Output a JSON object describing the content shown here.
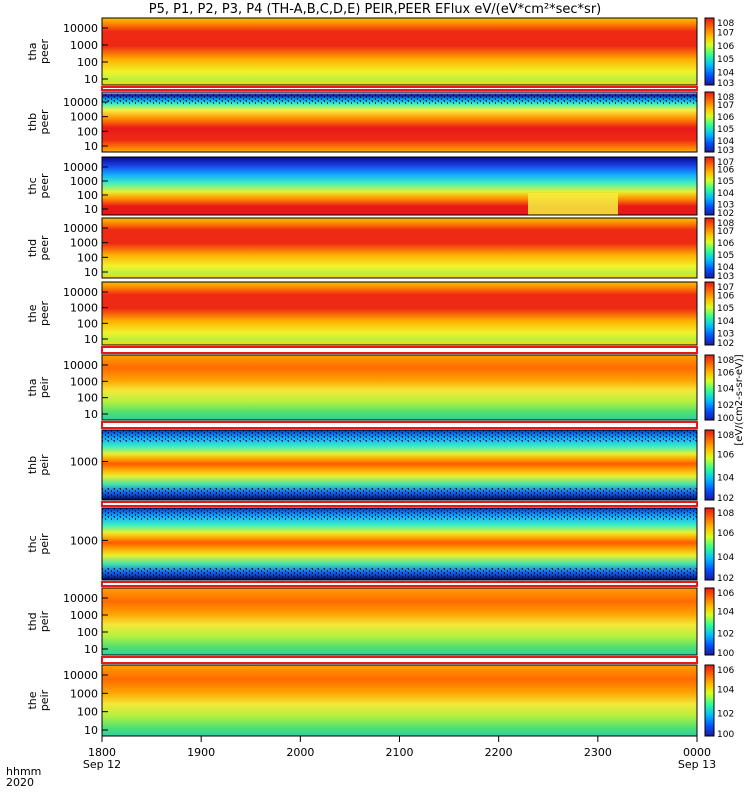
{
  "header": {
    "title": "P5, P1, P2, P3, P4 (TH-A,B,C,D,E) PEIR,PEER EFlux eV/(eV*cm²*sec*sr)"
  },
  "footer": {
    "unit_line1": "hhmm",
    "unit_line2": "2020",
    "colorbar_units": "[eV/(cm2-s-sr-eV)]"
  },
  "chart_data": {
    "type": "heatmap",
    "title": "P5, P1, P2, P3, P4 (TH-A,B,C,D,E) PEIR,PEER EFlux eV/(eV*cm²*sec*sr)",
    "x_axis": {
      "ticks": [
        "1800",
        "1900",
        "2000",
        "2100",
        "2200",
        "2300",
        "0000"
      ],
      "date_labels": {
        "1800": "Sep 12",
        "0000": "Sep 13"
      },
      "range": [
        "2020-09-12 18:00",
        "2020-09-13 00:00"
      ]
    },
    "colorbar": {
      "colors": [
        "#1a1aa0",
        "#0050ff",
        "#00c0ff",
        "#30ff90",
        "#d8ff20",
        "#ffc000",
        "#ff6a00",
        "#e81818"
      ]
    },
    "panels": [
      {
        "probe": "tha",
        "species": "peer",
        "ylabels": [
          "10000",
          "1000",
          "100",
          "10"
        ],
        "cbar_ticks": [
          "10^8",
          "10^7",
          "10^6",
          "10^5",
          "10^4",
          "10^3"
        ],
        "cbar_max": 8,
        "cbar_min": 3
      },
      {
        "probe": "thb",
        "species": "peer",
        "ylabels": [
          "10000",
          "1000",
          "100",
          "10"
        ],
        "cbar_ticks": [
          "10^8",
          "10^7",
          "10^6",
          "10^5",
          "10^4",
          "10^3"
        ],
        "cbar_max": 8,
        "cbar_min": 3
      },
      {
        "probe": "thc",
        "species": "peer",
        "ylabels": [
          "10000",
          "1000",
          "100",
          "10"
        ],
        "cbar_ticks": [
          "10^7",
          "10^6",
          "10^5",
          "10^4",
          "10^3",
          "10^2"
        ],
        "cbar_max": 7,
        "cbar_min": 2
      },
      {
        "probe": "thd",
        "species": "peer",
        "ylabels": [
          "10000",
          "1000",
          "100",
          "10"
        ],
        "cbar_ticks": [
          "10^8",
          "10^7",
          "10^6",
          "10^5",
          "10^4",
          "10^3"
        ],
        "cbar_max": 8,
        "cbar_min": 3
      },
      {
        "probe": "the",
        "species": "peer",
        "ylabels": [
          "10000",
          "1000",
          "100",
          "10"
        ],
        "cbar_ticks": [
          "10^7",
          "10^6",
          "10^5",
          "10^4",
          "10^3",
          "10^2"
        ],
        "cbar_max": 7,
        "cbar_min": 2
      },
      {
        "probe": "tha",
        "species": "peir",
        "ylabels": [
          "10000",
          "1000",
          "100",
          "10"
        ],
        "cbar_ticks": [
          "10^8",
          "10^6",
          "10^4",
          "10^2",
          "10^0"
        ],
        "cbar_max": 8,
        "cbar_min": 0
      },
      {
        "probe": "thb",
        "species": "peir",
        "ylabels": [
          "1000"
        ],
        "cbar_ticks": [
          "10^8",
          "10^6",
          "10^4",
          "10^2"
        ],
        "cbar_max": 8,
        "cbar_min": 2
      },
      {
        "probe": "thc",
        "species": "peir",
        "ylabels": [
          "1000"
        ],
        "cbar_ticks": [
          "10^8",
          "10^6",
          "10^4",
          "10^2"
        ],
        "cbar_max": 8,
        "cbar_min": 2
      },
      {
        "probe": "thd",
        "species": "peir",
        "ylabels": [
          "10000",
          "1000",
          "100",
          "10"
        ],
        "cbar_ticks": [
          "10^6",
          "10^4",
          "10^2",
          "10^0"
        ],
        "cbar_max": 6,
        "cbar_min": 0
      },
      {
        "probe": "the",
        "species": "peir",
        "ylabels": [
          "10000",
          "1000",
          "100",
          "10"
        ],
        "cbar_ticks": [
          "10^6",
          "10^4",
          "10^2",
          "10^0"
        ],
        "cbar_max": 6,
        "cbar_min": 0
      }
    ]
  }
}
